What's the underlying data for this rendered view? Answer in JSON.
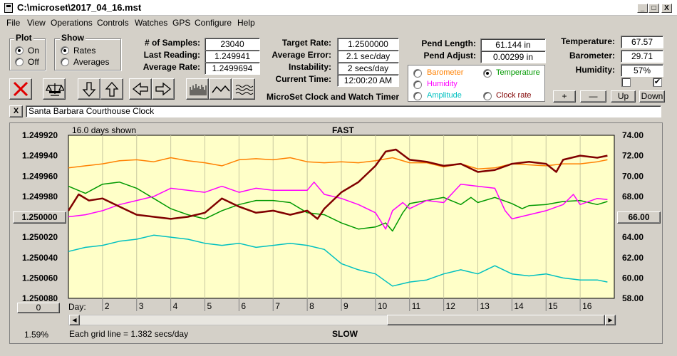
{
  "window": {
    "title": "C:\\microset\\2017_04_16.mst",
    "min_label": "_",
    "max_label": "□",
    "close_label": "X"
  },
  "menu": [
    "File",
    "View",
    "Operations",
    "Controls",
    "Watches",
    "GPS",
    "Configure",
    "Help"
  ],
  "plot_group": {
    "title": "Plot",
    "on": "On",
    "off": "Off",
    "selected": "On"
  },
  "show_group": {
    "title": "Show",
    "rates": "Rates",
    "averages": "Averages",
    "selected": "Rates"
  },
  "stats": {
    "samples_label": "# of Samples:",
    "samples": "23040",
    "last_label": "Last Reading:",
    "last": "1.249941",
    "avg_label": "Average Rate:",
    "avg": "1.2499694"
  },
  "target": {
    "rate_label": "Target Rate:",
    "rate": "1.2500000",
    "err_label": "Average Error:",
    "err": "2.1 sec/day",
    "inst_label": "Instability:",
    "inst": "2 secs/day",
    "time_label": "Current Time:",
    "time": "12:00:20 AM"
  },
  "product_title": "MicroSet Clock and Watch Timer",
  "pend": {
    "len_label": "Pend Length:",
    "len": "61.144 in",
    "adj_label": "Pend Adjust:",
    "adj": "0.00299 in"
  },
  "env": {
    "temp_label": "Temperature:",
    "temp": "67.57",
    "baro_label": "Barometer:",
    "baro": "29.71",
    "hum_label": "Humidity:",
    "hum": "57%",
    "check1": false,
    "check2": true
  },
  "legend": {
    "barometer": "Barometer",
    "temperature": "Temperature",
    "humidity": "Humidity",
    "amplitude": "Amplitude",
    "clock_rate": "Clock rate",
    "selected": "Temperature",
    "colors": {
      "barometer": "#ff8000",
      "temperature": "#009900",
      "humidity": "#ff00ff",
      "amplitude": "#00c0c0",
      "clock_rate": "#800000"
    }
  },
  "scale_buttons": {
    "plus": "+",
    "minus": "—",
    "up": "Up",
    "down": "Down"
  },
  "watch_name": "Santa Barbara Courthouse Clock",
  "clear_label": "X",
  "chart": {
    "days_shown": "16.0 days shown",
    "fast": "FAST",
    "slow": "SLOW",
    "day_label": "Day:",
    "grid_note": "Each grid line = 1.382 secs/day",
    "zoom": "1.59%",
    "left_btn": "1.250000",
    "right_btn": "66.00",
    "bottom_btn": "0"
  },
  "chart_data": {
    "type": "line",
    "y_left_ticks": [
      "1.249920",
      "1.249940",
      "1.249960",
      "1.249980",
      "1.250000",
      "1.250020",
      "1.250040",
      "1.250060",
      "1.250080"
    ],
    "y_right_ticks": [
      "74.00",
      "72.00",
      "70.00",
      "68.00",
      "66.00",
      "64.00",
      "62.00",
      "60.00",
      "58.00"
    ],
    "x_ticks": [
      "2",
      "3",
      "4",
      "5",
      "6",
      "7",
      "8",
      "9",
      "10",
      "11",
      "12",
      "13",
      "14",
      "15",
      "16"
    ],
    "x_range": [
      1,
      17
    ],
    "y_left_range": [
      1.24992,
      1.25008
    ],
    "y_right_range": [
      58,
      74
    ],
    "background": "#ffffc8",
    "series": [
      {
        "name": "Barometer",
        "color": "#ff8000",
        "width": 1.5,
        "x": [
          1.0,
          1.5,
          2.0,
          2.5,
          3.0,
          3.5,
          4.0,
          4.5,
          5.0,
          5.5,
          6.0,
          6.5,
          7.0,
          7.5,
          8.0,
          8.5,
          9.0,
          9.5,
          10.0,
          10.5,
          11.0,
          11.5,
          12.0,
          12.5,
          13.0,
          13.5,
          14.0,
          14.5,
          15.0,
          15.5,
          16.0,
          16.5,
          16.8
        ],
        "y": [
          70.8,
          71.0,
          71.2,
          71.5,
          71.6,
          71.4,
          71.8,
          71.5,
          71.3,
          71.0,
          71.6,
          71.7,
          71.6,
          71.8,
          71.4,
          71.3,
          71.4,
          71.3,
          71.5,
          71.8,
          71.3,
          71.3,
          70.9,
          71.2,
          70.7,
          70.8,
          71.2,
          71.1,
          71.0,
          71.2,
          71.2,
          71.4,
          71.6
        ]
      },
      {
        "name": "Temperature",
        "color": "#009900",
        "width": 1.5,
        "x": [
          1.0,
          1.5,
          2.0,
          2.5,
          3.0,
          3.5,
          4.0,
          4.5,
          5.0,
          5.5,
          6.0,
          6.5,
          7.0,
          7.5,
          8.0,
          8.5,
          9.0,
          9.5,
          10.0,
          10.3,
          10.5,
          10.8,
          11.0,
          11.5,
          12.0,
          12.5,
          12.8,
          13.0,
          13.5,
          14.0,
          14.3,
          14.5,
          15.0,
          15.5,
          16.0,
          16.5,
          16.8
        ],
        "y": [
          69.0,
          68.3,
          69.2,
          69.4,
          68.8,
          67.8,
          66.8,
          66.2,
          65.8,
          66.6,
          67.2,
          67.6,
          67.6,
          67.4,
          66.4,
          66.2,
          65.4,
          64.8,
          65.0,
          65.4,
          64.6,
          66.4,
          67.3,
          67.6,
          67.9,
          67.2,
          67.9,
          67.4,
          67.9,
          67.3,
          66.8,
          67.1,
          67.2,
          67.5,
          67.6,
          67.2,
          67.5
        ]
      },
      {
        "name": "Humidity",
        "color": "#ff00ff",
        "width": 1.5,
        "x": [
          1.0,
          1.5,
          2.0,
          2.5,
          3.0,
          3.5,
          4.0,
          4.5,
          5.0,
          5.5,
          6.0,
          6.5,
          7.0,
          7.5,
          8.0,
          8.2,
          8.5,
          9.0,
          9.5,
          10.0,
          10.3,
          10.5,
          10.8,
          11.0,
          11.5,
          12.0,
          12.5,
          13.0,
          13.5,
          13.8,
          14.0,
          14.5,
          15.0,
          15.5,
          15.8,
          16.0,
          16.5,
          16.8
        ],
        "y": [
          66.0,
          66.2,
          66.6,
          67.2,
          67.6,
          68.0,
          68.8,
          68.6,
          68.4,
          69.0,
          68.4,
          68.8,
          68.6,
          68.6,
          68.6,
          69.4,
          68.2,
          67.8,
          67.2,
          66.4,
          64.8,
          66.6,
          67.4,
          66.8,
          67.6,
          67.4,
          69.2,
          69.0,
          68.8,
          66.6,
          65.8,
          66.2,
          66.6,
          67.2,
          68.2,
          67.2,
          67.8,
          67.7
        ]
      },
      {
        "name": "Amplitude",
        "color": "#00c0c0",
        "width": 1.5,
        "x": [
          1.0,
          1.5,
          2.0,
          2.5,
          3.0,
          3.5,
          4.0,
          4.5,
          5.0,
          5.5,
          6.0,
          6.5,
          7.0,
          7.5,
          8.0,
          8.5,
          9.0,
          9.5,
          10.0,
          10.5,
          11.0,
          11.5,
          12.0,
          12.5,
          13.0,
          13.5,
          14.0,
          14.5,
          15.0,
          15.5,
          16.0,
          16.5,
          16.8
        ],
        "y": [
          62.6,
          63.0,
          63.2,
          63.6,
          63.8,
          64.2,
          64.0,
          63.8,
          63.4,
          63.2,
          63.4,
          63.0,
          63.2,
          63.4,
          63.2,
          62.8,
          61.4,
          60.8,
          60.4,
          59.2,
          59.6,
          59.8,
          60.4,
          60.8,
          60.4,
          61.2,
          60.4,
          60.2,
          60.4,
          60.0,
          59.8,
          59.8,
          59.6
        ]
      },
      {
        "name": "Clock rate",
        "color": "#800000",
        "width": 2.5,
        "x": [
          1.0,
          1.3,
          1.6,
          2.0,
          2.5,
          3.0,
          3.5,
          4.0,
          4.5,
          5.0,
          5.5,
          6.0,
          6.5,
          7.0,
          7.5,
          8.0,
          8.3,
          8.5,
          9.0,
          9.5,
          10.0,
          10.3,
          10.6,
          11.0,
          11.5,
          12.0,
          12.5,
          13.0,
          13.5,
          14.0,
          14.5,
          15.0,
          15.3,
          15.5,
          16.0,
          16.5,
          16.8
        ],
        "y": [
          66.6,
          68.2,
          67.6,
          67.8,
          67.0,
          66.2,
          66.0,
          65.8,
          66.0,
          66.4,
          67.8,
          67.0,
          66.4,
          66.6,
          66.2,
          66.6,
          65.8,
          66.8,
          68.4,
          69.4,
          71.0,
          72.4,
          72.6,
          71.6,
          71.4,
          71.0,
          71.2,
          70.4,
          70.6,
          71.2,
          71.4,
          71.2,
          70.4,
          71.6,
          72.0,
          71.8,
          72.0
        ]
      }
    ]
  }
}
